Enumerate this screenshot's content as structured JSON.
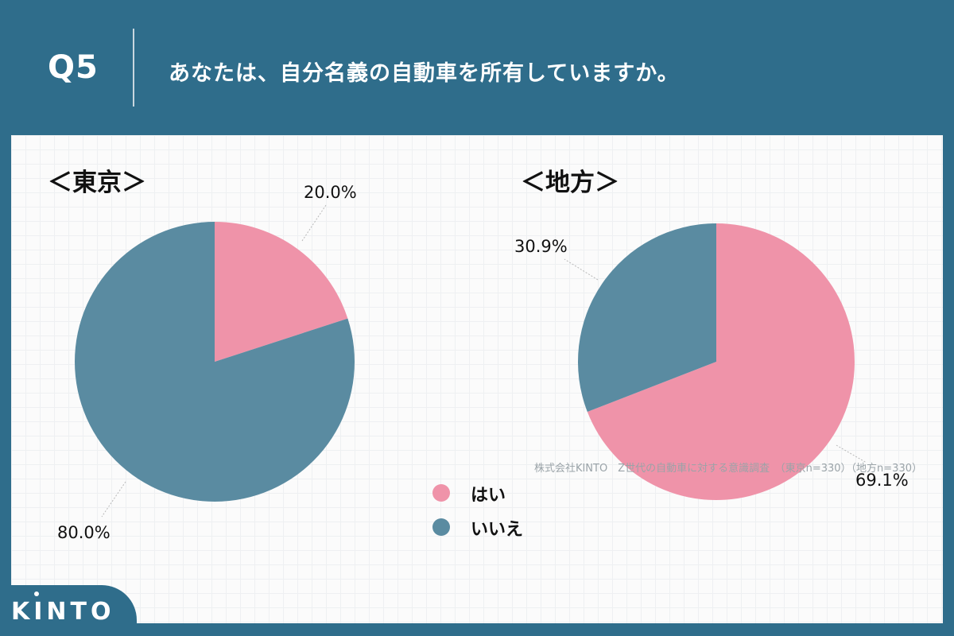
{
  "header": {
    "question_number": "Q5",
    "question": "あなたは、自分名義の自動車を所有していますか。"
  },
  "legend": [
    {
      "label": "はい",
      "color": "#ef93a9"
    },
    {
      "label": "いいえ",
      "color": "#5a8ba1"
    }
  ],
  "chart_data": [
    {
      "type": "pie",
      "title": "＜東京＞",
      "series": [
        {
          "name": "はい",
          "value": 20.0,
          "label": "20.0%"
        },
        {
          "name": "いいえ",
          "value": 80.0,
          "label": "80.0%"
        }
      ]
    },
    {
      "type": "pie",
      "title": "＜地方＞",
      "series": [
        {
          "name": "はい",
          "value": 69.1,
          "label": "69.1%"
        },
        {
          "name": "いいえ",
          "value": 30.9,
          "label": "30.9%"
        }
      ]
    }
  ],
  "footer": {
    "source": "株式会社KINTO　Z世代の自動車に対する意識調査　（東京n=330）（地方n=330）",
    "logo": "KINTO"
  }
}
